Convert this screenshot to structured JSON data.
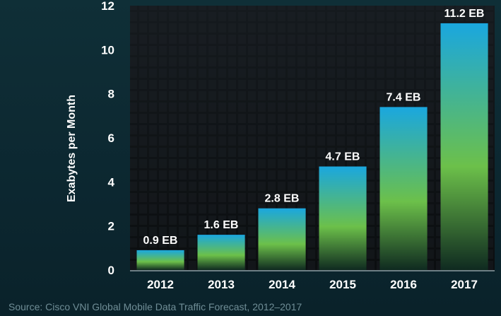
{
  "chart_data": {
    "type": "bar",
    "categories": [
      "2012",
      "2013",
      "2014",
      "2015",
      "2016",
      "2017"
    ],
    "values": [
      0.9,
      1.6,
      2.8,
      4.7,
      7.4,
      11.2
    ],
    "data_labels": [
      "0.9 EB",
      "1.6 EB",
      "2.8 EB",
      "4.7 EB",
      "7.4 EB",
      "11.2 EB"
    ],
    "title": "",
    "xlabel": "",
    "ylabel": "Exabytes per Month",
    "ylim": [
      0,
      12
    ],
    "yticks": [
      "0",
      "2",
      "4",
      "6",
      "8",
      "10",
      "12"
    ],
    "grid": false,
    "legend": "none",
    "colors": {
      "bar_top": "#1aa7df",
      "bar_mid": "#6cc04a",
      "bar_bottom": "#0f2a20",
      "plot_bg": "#101418",
      "page_bg": "#0e2b33",
      "text": "#ffffff"
    }
  },
  "footer": {
    "source": "Source: Cisco VNI Global Mobile Data Traffic Forecast, 2012–2017"
  }
}
